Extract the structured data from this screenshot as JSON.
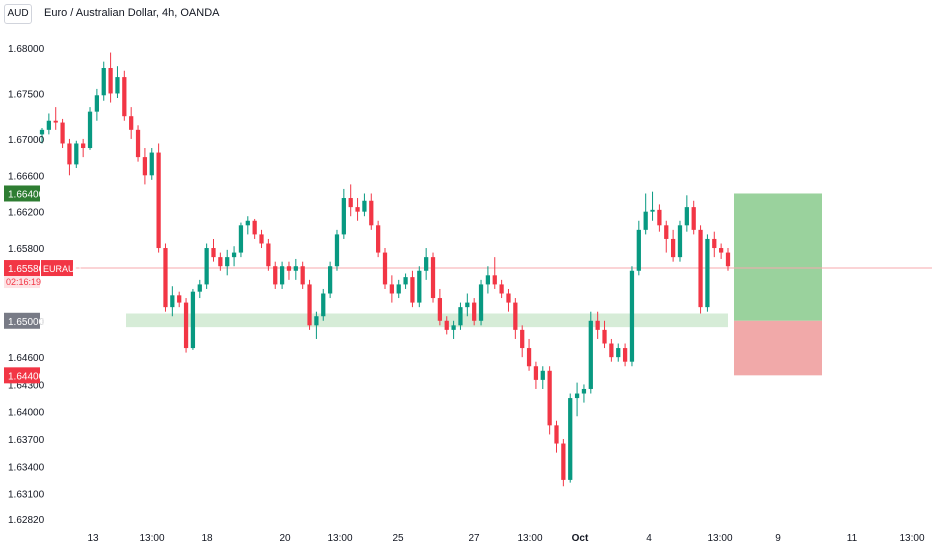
{
  "header": {
    "currency_badge": "AUD",
    "title": "Euro / Australian Dollar, 4h, OANDA"
  },
  "colors": {
    "up": "#089981",
    "down": "#f23645",
    "zone": "#c8e6c9",
    "profit": "#81c784",
    "loss": "#ef9a9a",
    "price_line": "#f7a8ae",
    "grid_text": "#131722"
  },
  "chart_data": {
    "type": "candlestick",
    "y_ticks": [
      "1.68000",
      "1.67500",
      "1.67000",
      "1.66600",
      "1.66200",
      "1.65800",
      "1.65000",
      "1.64600",
      "1.64300",
      "1.64000",
      "1.63700",
      "1.63400",
      "1.63100",
      "1.62820"
    ],
    "x_labels": [
      "13",
      "13:00",
      "18",
      "20",
      "13:00",
      "25",
      "27",
      "13:00",
      "Oct",
      "4",
      "13:00",
      "9",
      "11",
      "13:00"
    ],
    "price_labels": [
      {
        "text": "1.66400",
        "value": 1.664,
        "style": "green"
      },
      {
        "text": "1.65580",
        "value": 1.6558,
        "style": "red",
        "symbol": "EURAUD",
        "countdown": "02:16:19"
      },
      {
        "text": "1.65000",
        "value": 1.65,
        "style": "gray"
      },
      {
        "text": "1.64400",
        "value": 1.644,
        "style": "red"
      }
    ],
    "support_zone": {
      "low": 1.6493,
      "high": 1.6508
    },
    "position": {
      "entry": 1.65,
      "target": 1.664,
      "stop": 1.644
    },
    "current_price": 1.6558,
    "candles": [
      [
        1.6705,
        1.6712,
        1.6695,
        1.671
      ],
      [
        1.671,
        1.6728,
        1.6705,
        1.672
      ],
      [
        1.672,
        1.6735,
        1.671,
        1.6718
      ],
      [
        1.6718,
        1.6722,
        1.669,
        1.6695
      ],
      [
        1.6695,
        1.67,
        1.666,
        1.6672
      ],
      [
        1.6672,
        1.6698,
        1.6668,
        1.6695
      ],
      [
        1.6695,
        1.67,
        1.668,
        1.669
      ],
      [
        1.669,
        1.6735,
        1.6688,
        1.673
      ],
      [
        1.673,
        1.6755,
        1.672,
        1.6748
      ],
      [
        1.6748,
        1.6785,
        1.6742,
        1.6778
      ],
      [
        1.6778,
        1.6795,
        1.674,
        1.675
      ],
      [
        1.675,
        1.678,
        1.6745,
        1.6768
      ],
      [
        1.6768,
        1.6775,
        1.672,
        1.6725
      ],
      [
        1.6725,
        1.6735,
        1.67,
        1.671
      ],
      [
        1.671,
        1.6715,
        1.6675,
        1.668
      ],
      [
        1.668,
        1.669,
        1.665,
        1.666
      ],
      [
        1.666,
        1.669,
        1.6655,
        1.6685
      ],
      [
        1.6685,
        1.6695,
        1.6575,
        1.658
      ],
      [
        1.658,
        1.6585,
        1.651,
        1.6515
      ],
      [
        1.6515,
        1.6538,
        1.6505,
        1.6528
      ],
      [
        1.6528,
        1.6532,
        1.6515,
        1.652
      ],
      [
        1.652,
        1.6525,
        1.6465,
        1.647
      ],
      [
        1.647,
        1.6535,
        1.6468,
        1.6532
      ],
      [
        1.6532,
        1.6545,
        1.6525,
        1.654
      ],
      [
        1.654,
        1.6585,
        1.6535,
        1.658
      ],
      [
        1.658,
        1.659,
        1.6565,
        1.657
      ],
      [
        1.657,
        1.6575,
        1.6555,
        1.656
      ],
      [
        1.656,
        1.6578,
        1.655,
        1.657
      ],
      [
        1.657,
        1.6582,
        1.656,
        1.6575
      ],
      [
        1.6575,
        1.6608,
        1.657,
        1.6605
      ],
      [
        1.6605,
        1.6615,
        1.6595,
        1.661
      ],
      [
        1.661,
        1.6612,
        1.659,
        1.6595
      ],
      [
        1.6595,
        1.66,
        1.658,
        1.6585
      ],
      [
        1.6585,
        1.659,
        1.6555,
        1.656
      ],
      [
        1.656,
        1.6565,
        1.6535,
        1.654
      ],
      [
        1.654,
        1.6565,
        1.6535,
        1.656
      ],
      [
        1.656,
        1.6565,
        1.6545,
        1.6555
      ],
      [
        1.6555,
        1.6568,
        1.6545,
        1.656
      ],
      [
        1.656,
        1.6565,
        1.6535,
        1.654
      ],
      [
        1.654,
        1.6545,
        1.649,
        1.6495
      ],
      [
        1.6495,
        1.651,
        1.648,
        1.6505
      ],
      [
        1.6505,
        1.6535,
        1.65,
        1.653
      ],
      [
        1.653,
        1.6565,
        1.6525,
        1.656
      ],
      [
        1.656,
        1.66,
        1.6555,
        1.6595
      ],
      [
        1.6595,
        1.6645,
        1.659,
        1.6635
      ],
      [
        1.6635,
        1.665,
        1.6615,
        1.6625
      ],
      [
        1.6625,
        1.6635,
        1.661,
        1.662
      ],
      [
        1.662,
        1.664,
        1.6615,
        1.6632
      ],
      [
        1.6632,
        1.664,
        1.66,
        1.6605
      ],
      [
        1.6605,
        1.661,
        1.657,
        1.6575
      ],
      [
        1.6575,
        1.658,
        1.6535,
        1.654
      ],
      [
        1.654,
        1.655,
        1.652,
        1.653
      ],
      [
        1.653,
        1.6545,
        1.6525,
        1.654
      ],
      [
        1.654,
        1.6552,
        1.6535,
        1.6548
      ],
      [
        1.6548,
        1.6555,
        1.6515,
        1.652
      ],
      [
        1.652,
        1.656,
        1.6515,
        1.6555
      ],
      [
        1.6555,
        1.658,
        1.6545,
        1.657
      ],
      [
        1.657,
        1.6575,
        1.652,
        1.6525
      ],
      [
        1.6525,
        1.6535,
        1.6495,
        1.65
      ],
      [
        1.65,
        1.6505,
        1.6485,
        1.649
      ],
      [
        1.649,
        1.65,
        1.648,
        1.6495
      ],
      [
        1.6495,
        1.652,
        1.649,
        1.6515
      ],
      [
        1.6515,
        1.653,
        1.6505,
        1.652
      ],
      [
        1.652,
        1.6525,
        1.6495,
        1.65
      ],
      [
        1.65,
        1.6545,
        1.6495,
        1.654
      ],
      [
        1.654,
        1.656,
        1.653,
        1.655
      ],
      [
        1.655,
        1.657,
        1.6535,
        1.654
      ],
      [
        1.654,
        1.6545,
        1.6525,
        1.653
      ],
      [
        1.653,
        1.6535,
        1.651,
        1.652
      ],
      [
        1.652,
        1.6525,
        1.648,
        1.649
      ],
      [
        1.649,
        1.6495,
        1.646,
        1.647
      ],
      [
        1.647,
        1.648,
        1.6445,
        1.645
      ],
      [
        1.645,
        1.6455,
        1.6425,
        1.6435
      ],
      [
        1.6435,
        1.645,
        1.6425,
        1.6445
      ],
      [
        1.6445,
        1.645,
        1.6375,
        1.6385
      ],
      [
        1.6385,
        1.639,
        1.6355,
        1.6365
      ],
      [
        1.6365,
        1.637,
        1.6318,
        1.6325
      ],
      [
        1.6325,
        1.642,
        1.6322,
        1.6415
      ],
      [
        1.6415,
        1.6432,
        1.6395,
        1.642
      ],
      [
        1.642,
        1.643,
        1.641,
        1.6425
      ],
      [
        1.6425,
        1.651,
        1.642,
        1.65
      ],
      [
        1.65,
        1.651,
        1.648,
        1.649
      ],
      [
        1.649,
        1.65,
        1.647,
        1.6475
      ],
      [
        1.6475,
        1.648,
        1.6455,
        1.646
      ],
      [
        1.646,
        1.6475,
        1.6455,
        1.647
      ],
      [
        1.647,
        1.6475,
        1.645,
        1.6455
      ],
      [
        1.6455,
        1.656,
        1.645,
        1.6555
      ],
      [
        1.6555,
        1.661,
        1.655,
        1.66
      ],
      [
        1.66,
        1.664,
        1.6595,
        1.662
      ],
      [
        1.662,
        1.6642,
        1.661,
        1.6622
      ],
      [
        1.6622,
        1.6628,
        1.6598,
        1.6605
      ],
      [
        1.6605,
        1.661,
        1.6575,
        1.659
      ],
      [
        1.659,
        1.66,
        1.6565,
        1.657
      ],
      [
        1.657,
        1.661,
        1.6565,
        1.6605
      ],
      [
        1.6605,
        1.6638,
        1.6598,
        1.6625
      ],
      [
        1.6625,
        1.6632,
        1.6595,
        1.66
      ],
      [
        1.66,
        1.6605,
        1.6508,
        1.6515
      ],
      [
        1.6515,
        1.6595,
        1.651,
        1.659
      ],
      [
        1.659,
        1.6598,
        1.657,
        1.658
      ],
      [
        1.658,
        1.6585,
        1.6568,
        1.6575
      ],
      [
        1.6575,
        1.658,
        1.6555,
        1.656
      ]
    ]
  }
}
